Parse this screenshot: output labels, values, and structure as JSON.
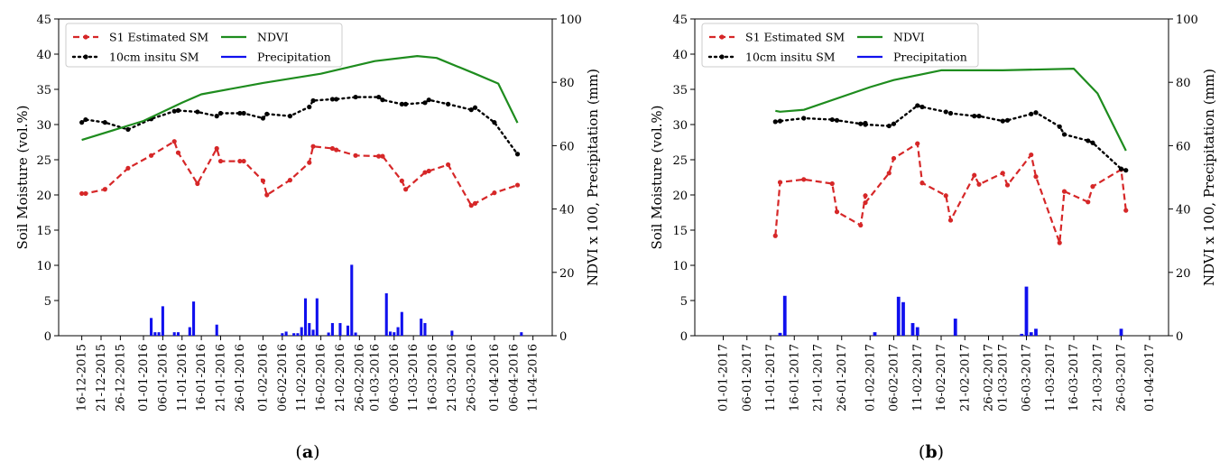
{
  "chart_data": [
    {
      "type": "line",
      "panel_label": "(a)",
      "ylabel_left": "Soil Moisture (vol.%)",
      "ylabel_right": "NDVI x 100, Precipitation (mm)",
      "ylim_left": [
        0,
        45
      ],
      "ylim_right": [
        0,
        100
      ],
      "yticks_left": [
        "0",
        "5",
        "10",
        "15",
        "20",
        "25",
        "30",
        "35",
        "40",
        "45"
      ],
      "yticks_right": [
        "0",
        "20",
        "40",
        "60",
        "80",
        "100"
      ],
      "x_range": [
        "2015-12-10",
        "2016-04-16"
      ],
      "xticks": [
        "16-12-2015",
        "21-12-2015",
        "26-12-2015",
        "01-01-2016",
        "06-01-2016",
        "11-01-2016",
        "16-01-2016",
        "21-01-2016",
        "26-01-2016",
        "01-02-2016",
        "06-02-2016",
        "11-02-2016",
        "16-02-2016",
        "21-02-2016",
        "26-02-2016",
        "01-03-2016",
        "06-03-2016",
        "11-03-2016",
        "16-03-2016",
        "21-03-2016",
        "26-03-2016",
        "01-04-2016",
        "06-04-2016",
        "11-04-2016"
      ],
      "legend": {
        "placement": "upper-left",
        "entries": [
          {
            "key": "s1",
            "label": "S1 Estimated SM"
          },
          {
            "key": "ndvi",
            "label": "NDVI"
          },
          {
            "key": "insitu",
            "label": "10cm insitu SM"
          },
          {
            "key": "precip",
            "label": "Precipitation"
          }
        ]
      },
      "series": [
        {
          "key": "s1",
          "name": "S1 Estimated SM",
          "axis": "left",
          "color": "#d62728",
          "style": "dashed",
          "marker": true,
          "x": [
            "2015-12-16",
            "2015-12-17",
            "2015-12-22",
            "2015-12-28",
            "2016-01-03",
            "2016-01-09",
            "2016-01-10",
            "2016-01-15",
            "2016-01-20",
            "2016-01-21",
            "2016-01-26",
            "2016-01-27",
            "2016-02-01",
            "2016-02-02",
            "2016-02-08",
            "2016-02-13",
            "2016-02-14",
            "2016-02-19",
            "2016-02-20",
            "2016-02-25",
            "2016-03-02",
            "2016-03-03",
            "2016-03-08",
            "2016-03-09",
            "2016-03-14",
            "2016-03-15",
            "2016-03-20",
            "2016-03-26",
            "2016-03-27",
            "2016-04-01",
            "2016-04-07"
          ],
          "y": [
            20.2,
            20.2,
            20.8,
            23.8,
            25.6,
            27.6,
            26.0,
            21.6,
            26.6,
            24.8,
            24.8,
            24.8,
            22.0,
            20.0,
            22.1,
            24.6,
            26.9,
            26.6,
            26.4,
            25.6,
            25.5,
            25.5,
            22.0,
            20.8,
            23.2,
            23.4,
            24.3,
            18.5,
            18.8,
            20.3,
            21.4
          ]
        },
        {
          "key": "insitu",
          "name": "10cm insitu SM",
          "axis": "left",
          "color": "#000000",
          "style": "dotted",
          "marker": true,
          "x": [
            "2015-12-16",
            "2015-12-17",
            "2015-12-22",
            "2015-12-28",
            "2016-01-03",
            "2016-01-09",
            "2016-01-10",
            "2016-01-15",
            "2016-01-20",
            "2016-01-21",
            "2016-01-26",
            "2016-01-27",
            "2016-02-01",
            "2016-02-02",
            "2016-02-08",
            "2016-02-13",
            "2016-02-14",
            "2016-02-19",
            "2016-02-20",
            "2016-02-25",
            "2016-03-02",
            "2016-03-03",
            "2016-03-08",
            "2016-03-09",
            "2016-03-14",
            "2016-03-15",
            "2016-03-20",
            "2016-03-26",
            "2016-03-27",
            "2016-04-01",
            "2016-04-07"
          ],
          "y": [
            30.3,
            30.7,
            30.3,
            29.3,
            30.8,
            31.9,
            32.0,
            31.8,
            31.2,
            31.6,
            31.6,
            31.6,
            30.9,
            31.5,
            31.2,
            32.5,
            33.4,
            33.6,
            33.6,
            33.9,
            33.9,
            33.5,
            32.9,
            32.9,
            33.1,
            33.5,
            32.9,
            32.1,
            32.4,
            30.3,
            25.8
          ]
        },
        {
          "key": "ndvi",
          "name": "NDVI",
          "axis": "right",
          "color": "#1e8c1e",
          "style": "solid",
          "marker": false,
          "x": [
            "2015-12-16",
            "2016-01-01",
            "2016-01-11",
            "2016-01-16",
            "2016-02-01",
            "2016-02-16",
            "2016-03-01",
            "2016-03-12",
            "2016-03-17",
            "2016-03-27",
            "2016-04-02",
            "2016-04-07"
          ],
          "y": [
            61.8,
            67.8,
            73.6,
            76.2,
            79.8,
            82.7,
            86.7,
            88.3,
            87.7,
            82.7,
            79.6,
            67.2
          ]
        },
        {
          "key": "precip",
          "name": "Precipitation",
          "axis": "right",
          "color": "#1010ee",
          "style": "bar",
          "marker": false,
          "x": [
            "2016-01-03",
            "2016-01-04",
            "2016-01-05",
            "2016-01-06",
            "2016-01-09",
            "2016-01-10",
            "2016-01-13",
            "2016-01-14",
            "2016-01-20",
            "2016-02-06",
            "2016-02-07",
            "2016-02-09",
            "2016-02-10",
            "2016-02-11",
            "2016-02-12",
            "2016-02-13",
            "2016-02-14",
            "2016-02-15",
            "2016-02-18",
            "2016-02-19",
            "2016-02-21",
            "2016-02-23",
            "2016-02-24",
            "2016-02-25",
            "2016-03-04",
            "2016-03-05",
            "2016-03-06",
            "2016-03-07",
            "2016-03-08",
            "2016-03-13",
            "2016-03-14",
            "2016-03-21",
            "2016-04-08"
          ],
          "y": [
            5.6,
            1.1,
            1.1,
            9.3,
            1.1,
            1.1,
            2.7,
            10.8,
            3.5,
            0.8,
            1.3,
            0.8,
            0.8,
            2.7,
            11.8,
            4.0,
            1.9,
            11.8,
            1.0,
            4.0,
            4.0,
            3.2,
            22.4,
            1.0,
            13.4,
            1.3,
            1.1,
            2.7,
            7.5,
            5.4,
            4.0,
            1.6,
            1.1
          ]
        }
      ]
    },
    {
      "type": "line",
      "panel_label": "(b)",
      "ylabel_left": "Soil Moisture (vol.%)",
      "ylabel_right": "NDVI x 100, Precipitation (mm)",
      "ylim_left": [
        0,
        45
      ],
      "ylim_right": [
        0,
        100
      ],
      "yticks_left": [
        "0",
        "5",
        "10",
        "15",
        "20",
        "25",
        "30",
        "35",
        "40",
        "45"
      ],
      "yticks_right": [
        "0",
        "20",
        "40",
        "60",
        "80",
        "100"
      ],
      "x_range": [
        "2016-12-26",
        "2017-04-05"
      ],
      "xticks": [
        "01-01-2017",
        "06-01-2017",
        "11-01-2017",
        "16-01-2017",
        "21-01-2017",
        "26-01-2017",
        "01-02-2017",
        "06-02-2017",
        "11-02-2017",
        "16-02-2017",
        "21-02-2017",
        "26-02-2017",
        "01-03-2017",
        "06-03-2017",
        "11-03-2017",
        "16-03-2017",
        "21-03-2017",
        "26-03-2017",
        "01-04-2017"
      ],
      "legend": {
        "placement": "upper-left",
        "entries": [
          {
            "key": "s1",
            "label": "S1 Estimated SM"
          },
          {
            "key": "ndvi",
            "label": "NDVI"
          },
          {
            "key": "insitu",
            "label": "10cm insitu SM"
          },
          {
            "key": "precip",
            "label": "Precipitation"
          }
        ]
      },
      "series": [
        {
          "key": "s1",
          "name": "S1 Estimated SM",
          "axis": "left",
          "color": "#d62728",
          "style": "dashed",
          "marker": true,
          "x": [
            "2017-01-12",
            "2017-01-13",
            "2017-01-18",
            "2017-01-24",
            "2017-01-25",
            "2017-01-30",
            "2017-01-31",
            "2017-01-31",
            "2017-02-05",
            "2017-02-06",
            "2017-02-11",
            "2017-02-12",
            "2017-02-17",
            "2017-02-18",
            "2017-02-23",
            "2017-02-24",
            "2017-03-01",
            "2017-03-02",
            "2017-03-07",
            "2017-03-08",
            "2017-03-13",
            "2017-03-14",
            "2017-03-19",
            "2017-03-20",
            "2017-03-26",
            "2017-03-27"
          ],
          "y": [
            14.2,
            21.8,
            22.2,
            21.6,
            17.6,
            15.7,
            19.9,
            18.9,
            23.1,
            25.2,
            27.3,
            21.7,
            19.9,
            16.4,
            22.8,
            21.5,
            23.1,
            21.4,
            25.7,
            22.6,
            13.2,
            20.5,
            19.0,
            21.2,
            23.6,
            17.8
          ]
        },
        {
          "key": "insitu",
          "name": "10cm insitu SM",
          "axis": "left",
          "color": "#000000",
          "style": "dotted",
          "marker": true,
          "x": [
            "2017-01-12",
            "2017-01-13",
            "2017-01-18",
            "2017-01-24",
            "2017-01-25",
            "2017-01-30",
            "2017-01-31",
            "2017-01-31",
            "2017-02-05",
            "2017-02-06",
            "2017-02-11",
            "2017-02-12",
            "2017-02-17",
            "2017-02-18",
            "2017-02-23",
            "2017-02-24",
            "2017-03-01",
            "2017-03-02",
            "2017-03-07",
            "2017-03-08",
            "2017-03-13",
            "2017-03-14",
            "2017-03-19",
            "2017-03-20",
            "2017-03-26",
            "2017-03-27"
          ],
          "y": [
            30.4,
            30.5,
            30.9,
            30.7,
            30.6,
            30.1,
            30.2,
            30.0,
            29.8,
            30.1,
            32.7,
            32.5,
            31.8,
            31.6,
            31.2,
            31.2,
            30.5,
            30.6,
            31.5,
            31.7,
            29.7,
            28.6,
            27.7,
            27.4,
            23.7,
            23.5
          ]
        },
        {
          "key": "ndvi",
          "name": "NDVI",
          "axis": "right",
          "color": "#1e8c1e",
          "style": "solid",
          "marker": false,
          "x": [
            "2017-01-12",
            "2017-01-13",
            "2017-01-18",
            "2017-02-01",
            "2017-02-06",
            "2017-02-16",
            "2017-03-01",
            "2017-03-16",
            "2017-03-21",
            "2017-03-27"
          ],
          "y": [
            71.0,
            70.7,
            71.3,
            78.5,
            80.7,
            83.8,
            83.8,
            84.3,
            76.5,
            58.4
          ]
        },
        {
          "key": "precip",
          "name": "Precipitation",
          "axis": "right",
          "color": "#1010ee",
          "style": "bar",
          "marker": false,
          "x": [
            "2017-01-13",
            "2017-01-14",
            "2017-02-02",
            "2017-02-07",
            "2017-02-08",
            "2017-02-10",
            "2017-02-11",
            "2017-02-19",
            "2017-03-05",
            "2017-03-06",
            "2017-03-07",
            "2017-03-08",
            "2017-03-26"
          ],
          "y": [
            0.9,
            12.6,
            1.1,
            12.3,
            10.6,
            4.0,
            2.7,
            5.4,
            0.6,
            15.5,
            1.1,
            2.2,
            2.2
          ]
        }
      ]
    }
  ]
}
